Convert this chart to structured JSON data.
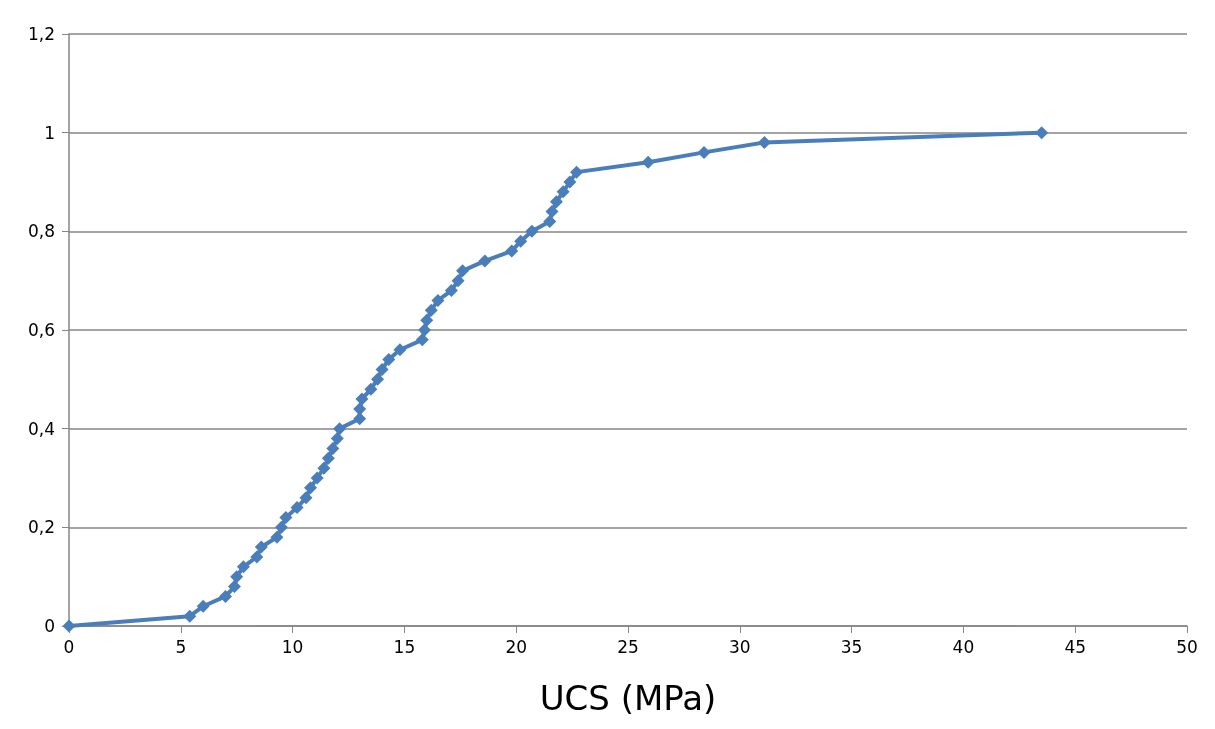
{
  "chart_data": {
    "type": "line",
    "xlabel": "UCS (MPa)",
    "marker": "diamond",
    "line_style": "solid",
    "grid": "y",
    "xlim": [
      0,
      50
    ],
    "xticks": [
      0,
      5,
      10,
      15,
      20,
      25,
      30,
      35,
      40,
      45,
      50
    ],
    "ylim": [
      0,
      1.2
    ],
    "yticks": [
      0,
      {
        "value": 0.2,
        "label": "0,2"
      },
      {
        "value": 0.4,
        "label": "0,4"
      },
      {
        "value": 0.6,
        "label": "0,6"
      },
      {
        "value": 0.8,
        "label": "0,8"
      },
      1,
      {
        "value": 1.2,
        "label": "1,2"
      }
    ],
    "series": [
      {
        "color": "#4a7ebb",
        "x": [
          0,
          5.4,
          6.0,
          7.0,
          7.4,
          7.5,
          7.8,
          8.4,
          8.6,
          9.3,
          9.5,
          9.7,
          10.2,
          10.6,
          10.8,
          11.1,
          11.4,
          11.6,
          11.8,
          12.0,
          12.1,
          13.0,
          13.0,
          13.1,
          13.5,
          13.8,
          14.0,
          14.3,
          14.8,
          15.8,
          15.9,
          16.0,
          16.2,
          16.5,
          17.1,
          17.4,
          17.6,
          18.6,
          19.8,
          20.2,
          20.7,
          21.5,
          21.6,
          21.8,
          22.1,
          22.4,
          22.7,
          25.9,
          28.4,
          31.1,
          43.5
        ],
        "values": [
          0,
          0.02,
          0.04,
          0.06,
          0.08,
          0.1,
          0.12,
          0.14,
          0.16,
          0.18,
          0.2,
          0.22,
          0.24,
          0.26,
          0.28,
          0.3,
          0.32,
          0.34,
          0.36,
          0.38,
          0.4,
          0.42,
          0.44,
          0.46,
          0.48,
          0.5,
          0.52,
          0.54,
          0.56,
          0.58,
          0.6,
          0.62,
          0.64,
          0.66,
          0.68,
          0.7,
          0.72,
          0.74,
          0.76,
          0.78,
          0.8,
          0.82,
          0.84,
          0.86,
          0.88,
          0.9,
          0.92,
          0.94,
          0.96,
          0.98,
          1
        ]
      }
    ]
  }
}
